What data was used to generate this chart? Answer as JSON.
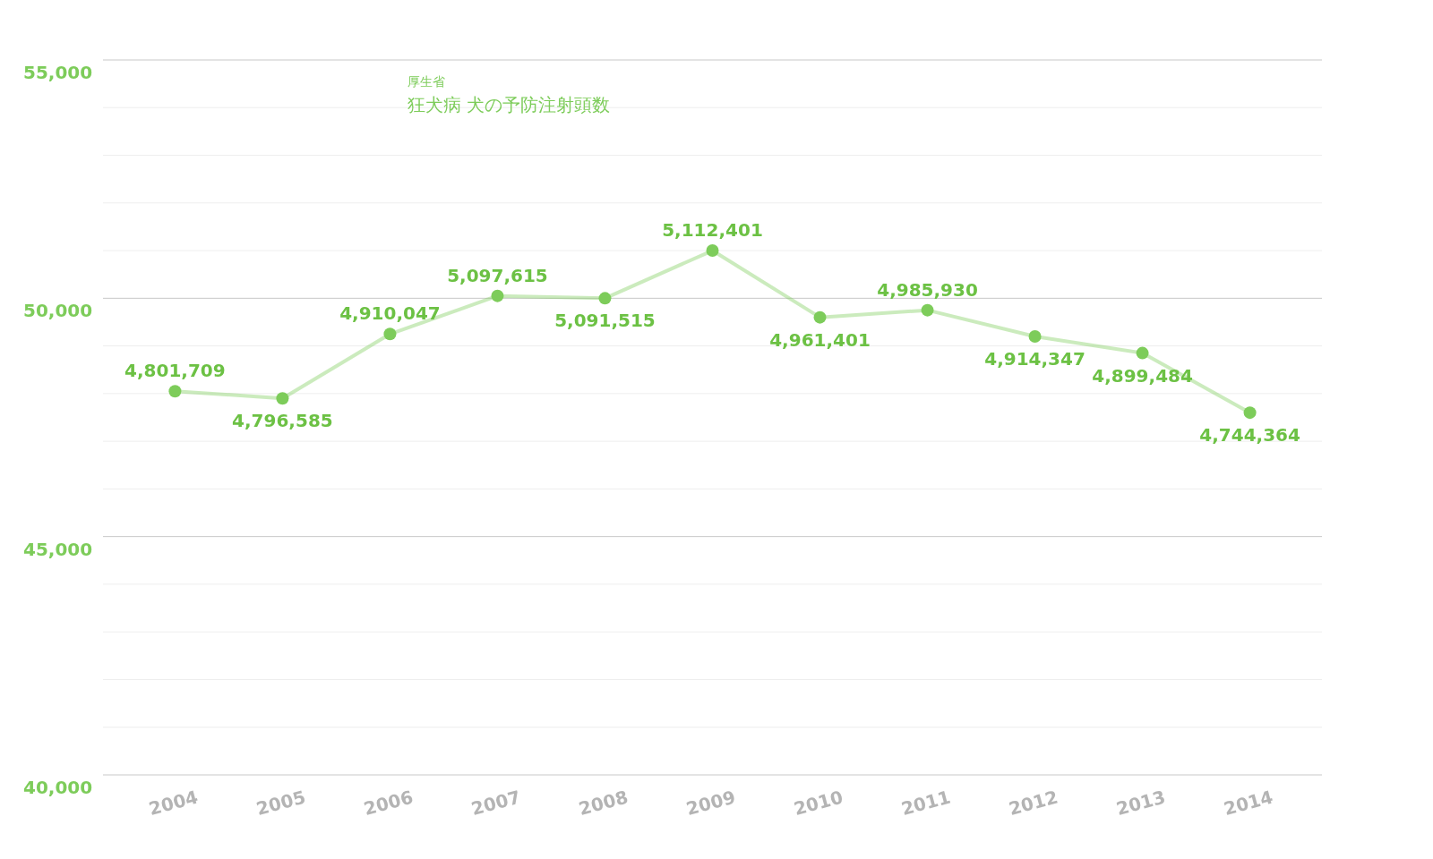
{
  "chart_data": {
    "type": "line",
    "title": "狂犬病  犬の予防注射頭数",
    "subtitle": "厚生省",
    "categories": [
      "2004",
      "2005",
      "2006",
      "2007",
      "2008",
      "2009",
      "2010",
      "2011",
      "2012",
      "2013",
      "2014"
    ],
    "series": [
      {
        "color": "#7dcc5a",
        "values": [
          48050,
          47900,
          49250,
          50050,
          50000,
          51000,
          49600,
          49750,
          49200,
          48850,
          47600
        ]
      }
    ],
    "annotations": [
      {
        "text": "4,801,709",
        "x": "2004",
        "y": 48050
      },
      {
        "text": "4,796,585",
        "x": "2005",
        "y": 47900
      },
      {
        "text": "4,910,047",
        "x": "2006",
        "y": 49250
      },
      {
        "text": "5,097,615",
        "x": "2007",
        "y": 50050
      },
      {
        "text": "5,091,515",
        "x": "2008",
        "y": 50000
      },
      {
        "text": "5,112,401",
        "x": "2009",
        "y": 51000
      },
      {
        "text": "4,961,401",
        "x": "2010",
        "y": 49600
      },
      {
        "text": "4,985,930",
        "x": "2011",
        "y": 49750
      },
      {
        "text": "4,914,347",
        "x": "2012",
        "y": 49200
      },
      {
        "text": "4,899,484",
        "x": "2013",
        "y": 48850
      },
      {
        "text": "4,744,364",
        "x": "2014",
        "y": 47600
      }
    ],
    "ylim": [
      40000,
      55000
    ],
    "yticks": [
      {
        "value": 40000,
        "label": "40,000"
      },
      {
        "value": 41000,
        "label": null
      },
      {
        "value": 42000,
        "label": null
      },
      {
        "value": 43000,
        "label": null
      },
      {
        "value": 44000,
        "label": null
      },
      {
        "value": 45000,
        "label": "45,000"
      },
      {
        "value": 46000,
        "label": null
      },
      {
        "value": 47000,
        "label": null
      },
      {
        "value": 48000,
        "label": null
      },
      {
        "value": 49000,
        "label": null
      },
      {
        "value": 50000,
        "label": "50,000"
      },
      {
        "value": 51000,
        "label": null
      },
      {
        "value": 52000,
        "label": null
      },
      {
        "value": 53000,
        "label": null
      },
      {
        "value": 54000,
        "label": null
      },
      {
        "value": 55000,
        "label": "55,000"
      }
    ],
    "grid": "y",
    "marker": "circle",
    "line_style": "solid"
  }
}
